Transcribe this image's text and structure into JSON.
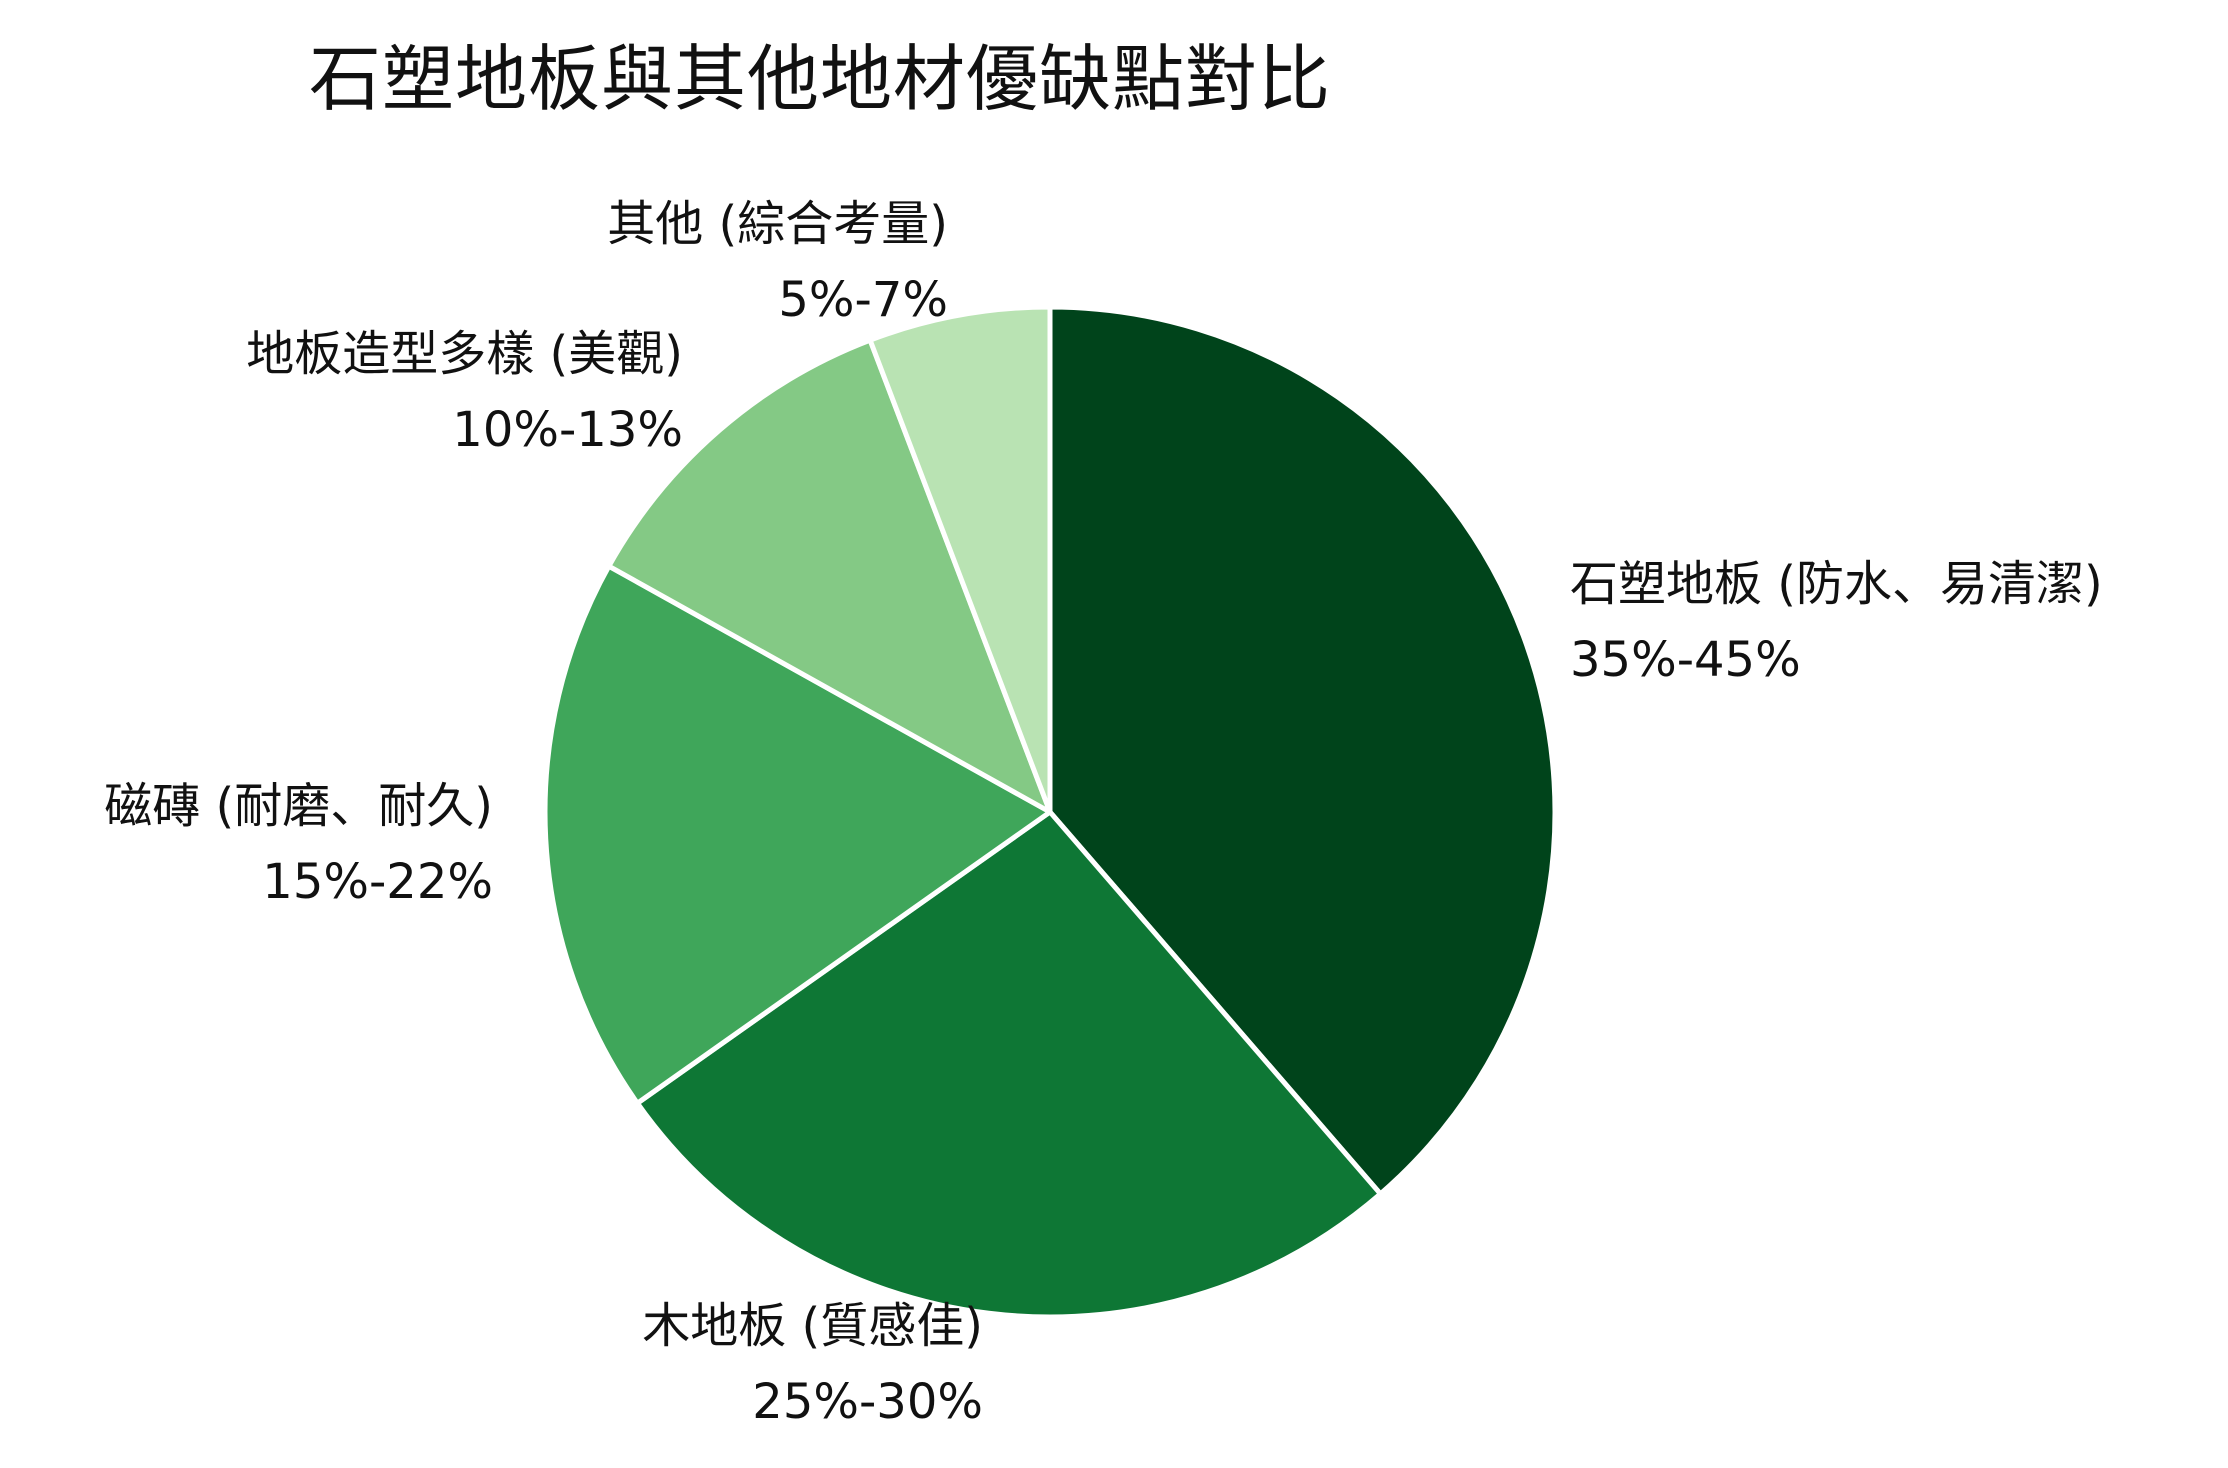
{
  "chart_data": {
    "type": "pie",
    "title": "石塑地板與其他地材優缺點對比",
    "slices": [
      {
        "label": "石塑地板 (防水、易清潔)",
        "range": "35%-45%",
        "value": 40,
        "color": "#00441b"
      },
      {
        "label": "木地板 (質感佳)",
        "range": "25%-30%",
        "value": 27.5,
        "color": "#0e7735"
      },
      {
        "label": "磁磚 (耐磨、耐久)",
        "range": "15%-22%",
        "value": 18.5,
        "color": "#3fa65a"
      },
      {
        "label": "地板造型多樣 (美觀)",
        "range": "10%-13%",
        "value": 11.5,
        "color": "#84c985"
      },
      {
        "label": "其他 (綜合考量)",
        "range": "5%-7%",
        "value": 6,
        "color": "#b9e3b3"
      }
    ],
    "start_angle": "12 o'clock",
    "direction": "clockwise",
    "legend": "none"
  }
}
